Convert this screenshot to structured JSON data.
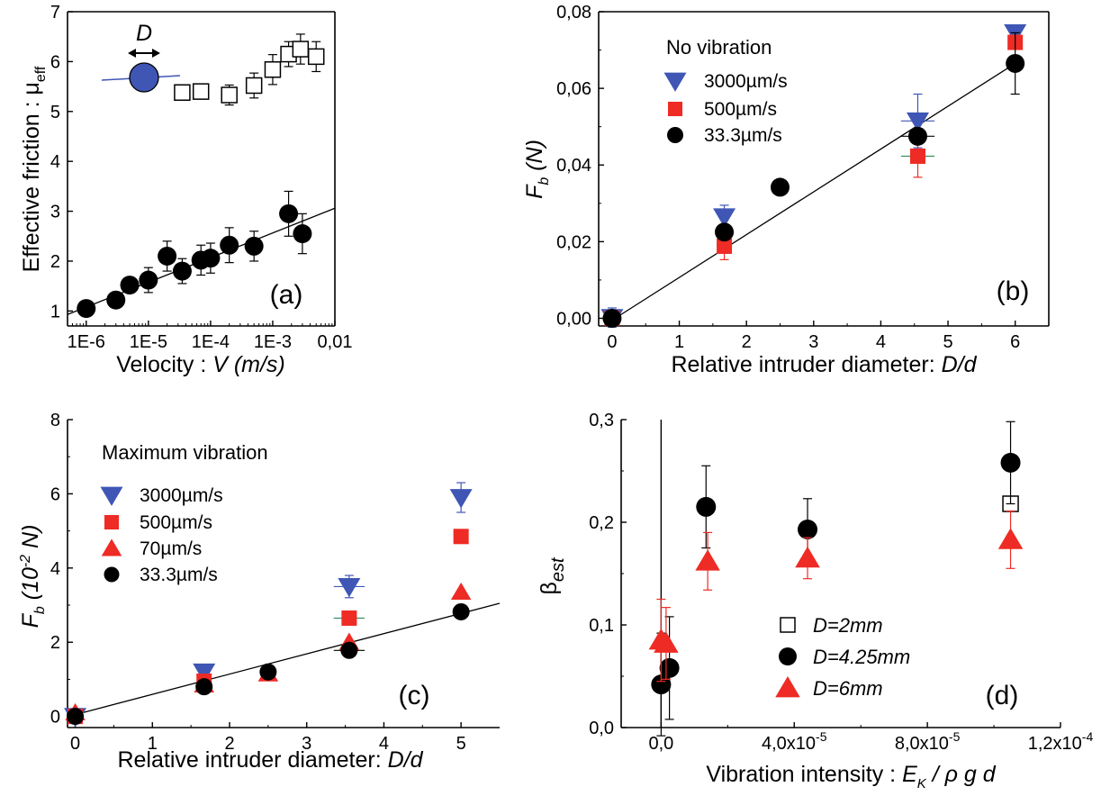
{
  "colors": {
    "blue": "#3f56b5",
    "red": "#ee2b24",
    "black": "#000000",
    "white": "#ffffff",
    "green": "#2e8b57"
  },
  "chart_data": [
    {
      "id": "a",
      "type": "scatter",
      "panel_label": "(a)",
      "xlabel": "Velocity : ",
      "xlabel_italic": "V (m/s)",
      "ylabel": "Effective friction : μ",
      "ylabel_sub": "eff",
      "xscale": "log",
      "xlim": [
        5e-07,
        0.01
      ],
      "ylim": [
        0.7,
        7
      ],
      "xticks": [
        1e-06,
        1e-05,
        0.0001,
        0.001,
        0.01
      ],
      "xtick_labels": [
        "1E-6",
        "1E-5",
        "1E-4",
        "1E-3",
        "0,01"
      ],
      "yticks": [
        1,
        2,
        3,
        4,
        5,
        6,
        7
      ],
      "ytick_labels": [
        "1",
        "2",
        "3",
        "4",
        "5",
        "6",
        "7"
      ],
      "inset_label": "D",
      "series": [
        {
          "marker": "square-open",
          "color": "#000000",
          "x": [
            3.5e-05,
            7e-05,
            0.0002,
            0.0005,
            0.001,
            0.0018,
            0.0028,
            0.005
          ],
          "y": [
            5.38,
            5.4,
            5.33,
            5.52,
            5.84,
            6.15,
            6.25,
            6.1
          ],
          "err": [
            0.1,
            0.15,
            0.2,
            0.25,
            0.3,
            0.25,
            0.3,
            0.3
          ]
        },
        {
          "marker": "circle",
          "color": "#000000",
          "x": [
            1e-06,
            3e-06,
            5e-06,
            1e-05,
            2e-05,
            3.5e-05,
            7e-05,
            0.0001,
            0.0002,
            0.0005,
            0.0018,
            0.003
          ],
          "y": [
            1.05,
            1.22,
            1.52,
            1.62,
            2.1,
            1.8,
            2.02,
            2.06,
            2.32,
            2.3,
            2.95,
            2.55
          ],
          "err": [
            0,
            0,
            0.15,
            0.25,
            0.3,
            0.25,
            0.3,
            0.3,
            0.35,
            0.3,
            0.45,
            0.4
          ]
        }
      ],
      "fit": {
        "x": [
          5e-07,
          0.01
        ],
        "y": [
          0.93,
          3.06
        ]
      }
    },
    {
      "id": "b",
      "type": "scatter",
      "panel_label": "(b)",
      "legend_title": "No vibration",
      "xlabel": "Relative intruder diameter: ",
      "xlabel_italic": "D/d",
      "ylabel": "F",
      "ylabel_sub": "b",
      "ylabel_tail": " (N)",
      "xlim": [
        -0.2,
        6.5
      ],
      "ylim": [
        -0.002,
        0.08
      ],
      "xticks": [
        0,
        1,
        2,
        3,
        4,
        5,
        6
      ],
      "xtick_labels": [
        "0",
        "1",
        "2",
        "3",
        "4",
        "5",
        "6"
      ],
      "yticks": [
        0,
        0.02,
        0.04,
        0.06,
        0.08
      ],
      "ytick_labels": [
        "0,00",
        "0,02",
        "0,04",
        "0,06",
        "0,08"
      ],
      "series": [
        {
          "name": "3000µm/s",
          "marker": "triangle-down",
          "color": "#3f56b5",
          "x": [
            0,
            1.67,
            4.55,
            6.0
          ],
          "y": [
            0.0002,
            0.0265,
            0.0515,
            0.0745
          ],
          "err": [
            0.0025,
            0.003,
            0.007,
            0
          ]
        },
        {
          "name": "500µm/s",
          "marker": "square",
          "color": "#ee2b24",
          "x": [
            0,
            1.67,
            4.55,
            6.0
          ],
          "y": [
            0,
            0.0188,
            0.0423,
            0.072
          ],
          "err": [
            0,
            0.0035,
            0.0055,
            0
          ]
        },
        {
          "name": "33.3µm/s",
          "marker": "circle",
          "color": "#000000",
          "x": [
            0,
            1.67,
            2.5,
            4.55,
            6.0
          ],
          "y": [
            0,
            0.0225,
            0.0342,
            0.0475,
            0.0665
          ],
          "err": [
            0,
            0,
            0,
            0,
            0.008
          ]
        }
      ],
      "fit": {
        "x": [
          0,
          6.0
        ],
        "y": [
          -0.0005,
          0.0665
        ]
      }
    },
    {
      "id": "c",
      "type": "scatter",
      "panel_label": "(c)",
      "legend_title": "Maximum vibration",
      "xlabel": "Relative intruder diameter: ",
      "xlabel_italic": "D/d",
      "ylabel": "F",
      "ylabel_sub": "b",
      "ylabel_tail": " (10",
      "ylabel_sup": "-2",
      "ylabel_end": " N)",
      "xlim": [
        -0.1,
        5.5
      ],
      "ylim": [
        -0.3,
        8
      ],
      "xticks": [
        0,
        1,
        2,
        3,
        4,
        5
      ],
      "xtick_labels": [
        "0",
        "1",
        "2",
        "3",
        "4",
        "5"
      ],
      "yticks": [
        0,
        2,
        4,
        6,
        8
      ],
      "ytick_labels": [
        "0",
        "2",
        "4",
        "6",
        "8"
      ],
      "series": [
        {
          "name": "3000µm/s",
          "marker": "triangle-down",
          "color": "#3f56b5",
          "x": [
            0,
            1.67,
            3.55,
            5.0
          ],
          "y": [
            0,
            1.2,
            3.5,
            5.9
          ],
          "err": [
            0,
            0,
            0.3,
            0.4
          ]
        },
        {
          "name": "500µm/s",
          "marker": "square",
          "color": "#ee2b24",
          "x": [
            0,
            1.67,
            3.55,
            5.0
          ],
          "y": [
            0,
            0.95,
            2.65,
            4.85
          ],
          "err": [
            0,
            0,
            0,
            0
          ]
        },
        {
          "name": "70µm/s",
          "marker": "triangle-up",
          "color": "#ee2b24",
          "x": [
            0,
            1.67,
            2.5,
            3.55,
            5.0
          ],
          "y": [
            0.1,
            0.85,
            1.15,
            2.0,
            3.35
          ],
          "err": [
            0,
            0,
            0,
            0,
            0
          ]
        },
        {
          "name": "33.3µm/s",
          "marker": "circle",
          "color": "#000000",
          "x": [
            0,
            1.67,
            2.5,
            3.55,
            5.0
          ],
          "y": [
            0,
            0.8,
            1.2,
            1.78,
            2.82
          ],
          "err": [
            0,
            0,
            0,
            0,
            0
          ]
        }
      ],
      "fit": {
        "x": [
          0,
          5.5
        ],
        "y": [
          0.05,
          3.05
        ]
      }
    },
    {
      "id": "d",
      "type": "scatter",
      "panel_label": "(d)",
      "xlabel": "Vibration intensity  : ",
      "xlabel_italic": "E",
      "xlabel_sub": "K",
      "xlabel_tail": " / ρ g d",
      "ylabel": "β",
      "ylabel_sub": "est",
      "xlim": [
        -1.2e-05,
        0.00012
      ],
      "ylim": [
        0,
        0.3
      ],
      "xticks": [
        0,
        4e-05,
        8e-05,
        0.00012
      ],
      "xtick_labels": [
        "0,0",
        "4,0x10",
        "8,0x10",
        "1,2x10"
      ],
      "xtick_sups": [
        "",
        "-5",
        "-5",
        "-4"
      ],
      "yticks": [
        0,
        0.1,
        0.2,
        0.3
      ],
      "ytick_labels": [
        "0,0",
        "0,1",
        "0,2",
        "0,3"
      ],
      "series": [
        {
          "name": "D=2mm",
          "marker": "square-open",
          "color": "#000000",
          "x": [
            0.000105
          ],
          "y": [
            0.218
          ],
          "err": [
            0.005
          ]
        },
        {
          "name": "D=4.25mm",
          "marker": "circle",
          "color": "#000000",
          "x": [
            0,
            2.5e-06,
            1.35e-05,
            4.4e-05,
            0.000105
          ],
          "y": [
            0.042,
            0.058,
            0.215,
            0.193,
            0.258
          ],
          "err": [
            0.05,
            0.05,
            0.04,
            0.03,
            0.04
          ]
        },
        {
          "name": "D=6mm",
          "marker": "triangle-up",
          "color": "#ee2b24",
          "x": [
            0,
            1.5e-06,
            1.4e-05,
            4.4e-05,
            0.000105
          ],
          "y": [
            0.085,
            0.082,
            0.162,
            0.165,
            0.183
          ],
          "err": [
            0.04,
            0.035,
            0.028,
            0.02,
            0.028
          ]
        }
      ]
    }
  ]
}
